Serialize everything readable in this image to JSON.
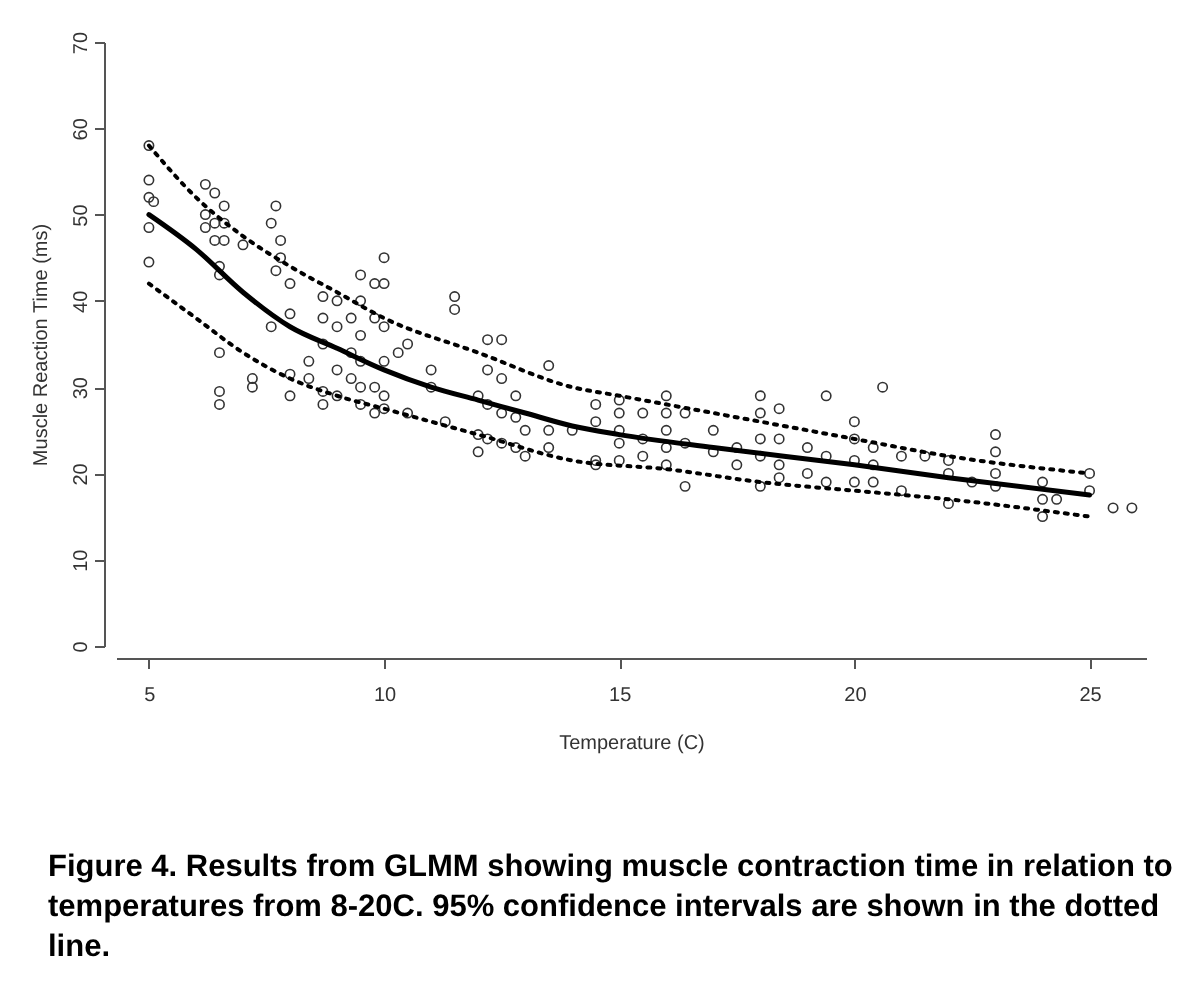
{
  "chart_data": {
    "type": "scatter",
    "xlabel": "Temperature (C)",
    "ylabel": "Muscle Reaction Time (ms)",
    "xlim": [
      4.3,
      26.2
    ],
    "xticks": [
      5,
      10,
      15,
      20,
      25
    ],
    "ylim": [
      0,
      70
    ],
    "yticks": [
      0,
      10,
      20,
      30,
      40,
      50,
      60,
      70
    ],
    "grid": false,
    "annotations": [
      "Figure 4. Results from GLMM showing muscle contraction time in relation to temperatures from 8-20C. 95% confidence intervals are shown in the dotted line."
    ],
    "series": [
      {
        "color": "#333333",
        "marker": "circle",
        "x": [
          5,
          5,
          5,
          5,
          5,
          5.1,
          6.2,
          6.2,
          6.2,
          6.4,
          6.4,
          6.4,
          6.5,
          6.5,
          6.5,
          6.5,
          6.5,
          6.6,
          6.6,
          6.6,
          7,
          7.2,
          7.2,
          7.6,
          7.6,
          7.7,
          7.7,
          7.8,
          7.8,
          8,
          8,
          8,
          8,
          8.4,
          8.4,
          8.7,
          8.7,
          8.7,
          8.7,
          8.7,
          9,
          9,
          9,
          9,
          9.3,
          9.3,
          9.3,
          9.5,
          9.5,
          9.5,
          9.5,
          9.5,
          9.5,
          9.8,
          9.8,
          9.8,
          9.8,
          10,
          10,
          10,
          10,
          10,
          10,
          10.3,
          10.5,
          10.5,
          11,
          11,
          11.3,
          11.5,
          11.5,
          12,
          12,
          12,
          12.2,
          12.2,
          12.2,
          12.2,
          12.5,
          12.5,
          12.5,
          12.5,
          12.8,
          12.8,
          12.8,
          13,
          13,
          13.5,
          13.5,
          13.5,
          14,
          14.5,
          14.5,
          14.5,
          14.5,
          15,
          15,
          15,
          15,
          15,
          15.5,
          15.5,
          15.5,
          16,
          16,
          16,
          16,
          16,
          16.4,
          16.4,
          16.4,
          17,
          17,
          17.5,
          17.5,
          18,
          18,
          18,
          18,
          18,
          18.4,
          18.4,
          18.4,
          18.4,
          19,
          19,
          19.4,
          19.4,
          19.4,
          20,
          20,
          20,
          20,
          20.4,
          20.4,
          20.4,
          20.6,
          21,
          21,
          21.5,
          22,
          22,
          22,
          22.5,
          23,
          23,
          23,
          23,
          24,
          24,
          24,
          24.3,
          25,
          25,
          25.5,
          25.9
        ],
        "values": [
          58,
          54,
          52,
          48.5,
          44.5,
          51.5,
          53.5,
          50,
          48.5,
          52.5,
          49,
          47,
          44,
          43,
          34,
          29.5,
          28,
          51,
          49,
          47,
          46.5,
          31,
          30,
          49,
          37,
          51,
          43.5,
          47,
          45,
          42,
          38.5,
          31.5,
          29,
          33,
          31,
          40.5,
          38,
          35,
          29.5,
          28,
          40,
          37,
          32,
          29,
          38,
          34,
          31,
          43,
          40,
          36,
          33,
          30,
          28,
          42,
          38,
          30,
          27,
          45,
          42,
          37,
          33,
          29,
          27.5,
          34,
          35,
          27,
          32,
          30,
          26,
          40.5,
          39,
          29,
          24.5,
          22.5,
          35.5,
          32,
          28,
          24,
          35.5,
          31,
          27,
          23.5,
          29,
          26.5,
          23,
          25,
          22,
          32.5,
          25,
          23,
          25,
          28,
          26,
          21.5,
          21,
          28.5,
          27,
          25,
          23.5,
          21.5,
          27,
          24,
          22,
          29,
          27,
          25,
          23,
          21,
          27,
          23.5,
          18.5,
          25,
          22.5,
          23,
          21,
          29,
          27,
          24,
          22,
          18.5,
          27.5,
          24,
          21,
          19.5,
          23,
          20,
          29,
          22,
          19,
          26,
          24,
          21.5,
          19,
          23,
          21,
          19,
          30,
          22,
          18,
          22,
          21.5,
          20,
          16.5,
          19,
          24.5,
          22.5,
          20,
          18.5,
          19,
          17,
          15,
          17,
          20,
          18,
          16,
          16
        ]
      },
      {
        "type": "line",
        "color": "#000000",
        "line_style": "solid",
        "marker": "none",
        "x": [
          5,
          6,
          7,
          8,
          9,
          10,
          11,
          12,
          13,
          14,
          15,
          17,
          20,
          22,
          25
        ],
        "values": [
          50,
          46,
          41,
          37,
          34.5,
          32,
          30,
          28.5,
          27,
          25.5,
          24.5,
          23,
          21,
          19.5,
          17.5
        ]
      },
      {
        "type": "line",
        "color": "#000000",
        "line_style": "dotted",
        "marker": "none",
        "x": [
          5,
          6,
          7,
          8,
          9,
          10,
          12,
          14,
          15,
          18,
          20,
          22,
          25
        ],
        "values": [
          58,
          52,
          47.5,
          44,
          41,
          38,
          34,
          30,
          29,
          26,
          24,
          22,
          20
        ]
      },
      {
        "type": "line",
        "color": "#000000",
        "line_style": "dotted",
        "marker": "none",
        "x": [
          5,
          6,
          7,
          8,
          9,
          10,
          12,
          14,
          16,
          18,
          20,
          22,
          25
        ],
        "values": [
          42,
          38,
          34,
          31,
          29,
          27.5,
          24.5,
          21.5,
          20.5,
          19,
          18,
          17,
          15
        ]
      }
    ]
  }
}
